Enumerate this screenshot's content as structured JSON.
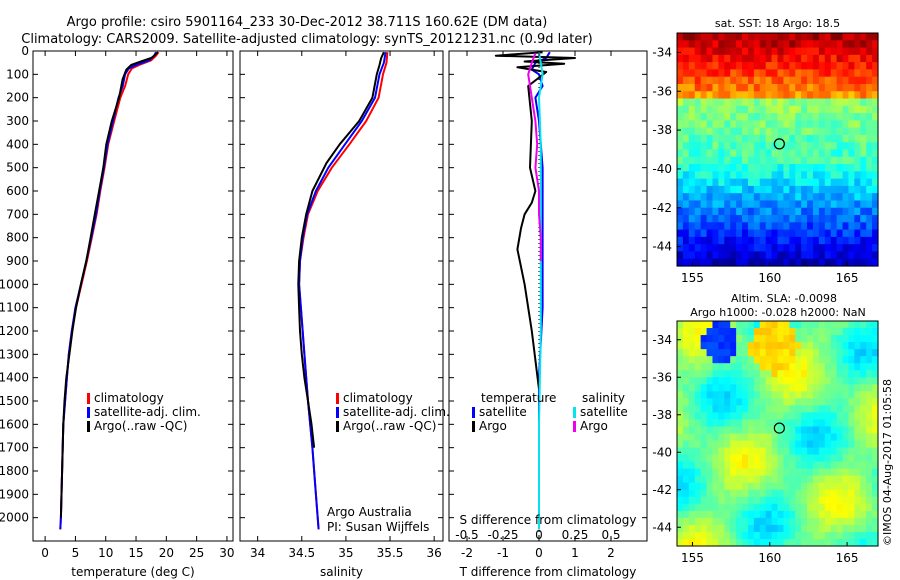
{
  "header": {
    "line1": "Argo profile: csiro 5901164_233 30-Dec-2012 38.711S 160.62E (DM data)",
    "line2": "Climatology: CARS2009. Satellite-adjusted climatology: synTS_20121231.nc (0.9d later)"
  },
  "colors": {
    "climatology": "#ff0000",
    "satellite": "#0000ff",
    "argo": "#000000",
    "salinity_satellite": "#00e5ee",
    "salinity_argo": "#ee00ee"
  },
  "chart_data": [
    {
      "type": "line",
      "xlabel": "temperature (deg C)",
      "ylabel": "",
      "xlim": [
        -2,
        31
      ],
      "ylim": [
        2100,
        0
      ],
      "xticks": [
        0,
        5,
        10,
        15,
        20,
        25,
        30
      ],
      "yticks": [
        0,
        100,
        200,
        300,
        400,
        500,
        600,
        700,
        800,
        900,
        1000,
        1100,
        1200,
        1300,
        1400,
        1500,
        1600,
        1700,
        1800,
        1900,
        2000
      ],
      "legend": [
        "climatology",
        "satellite-adj. clim.",
        "Argo(..raw -QC)"
      ],
      "legend_position": "lower-middle",
      "series": [
        {
          "name": "climatology",
          "color": "climatology",
          "x": [
            18.7,
            18.3,
            17.5,
            15.5,
            14.3,
            13.7,
            13.2,
            12.4,
            11.4,
            10.4,
            9.8,
            9.1,
            8.5,
            7.7,
            6.9,
            6.0,
            5.1,
            4.4,
            3.9,
            3.6,
            3.3,
            3.0,
            2.8,
            2.6,
            2.5
          ],
          "y": [
            5,
            20,
            40,
            60,
            75,
            100,
            150,
            200,
            300,
            400,
            500,
            600,
            700,
            800,
            900,
            1000,
            1100,
            1200,
            1300,
            1400,
            1500,
            1600,
            1800,
            2000,
            2050
          ]
        },
        {
          "name": "satellite-adj. clim.",
          "color": "satellite",
          "x": [
            18.3,
            18.0,
            17.2,
            15.0,
            13.8,
            13.2,
            12.8,
            12.1,
            11.2,
            10.3,
            9.7,
            9.0,
            8.4,
            7.6,
            6.8,
            5.9,
            5.0,
            4.4,
            3.9,
            3.6,
            3.3,
            3.0,
            2.8,
            2.6,
            2.5
          ],
          "y": [
            5,
            20,
            40,
            60,
            75,
            100,
            150,
            200,
            300,
            400,
            500,
            600,
            700,
            800,
            900,
            1000,
            1100,
            1200,
            1300,
            1400,
            1500,
            1600,
            1800,
            2000,
            2050
          ]
        },
        {
          "name": "Argo(..raw -QC)",
          "color": "argo",
          "x": [
            18.6,
            18.4,
            18.0,
            17.5,
            15.8,
            14.2,
            13.4,
            12.8,
            12.2,
            11.0,
            10.1,
            9.6,
            8.9,
            8.2,
            7.5,
            6.8,
            5.9,
            5.1,
            4.5,
            4.0,
            3.5,
            3.2,
            3.0,
            2.8,
            2.6
          ],
          "y": [
            5,
            10,
            20,
            30,
            45,
            60,
            80,
            120,
            200,
            300,
            400,
            500,
            600,
            700,
            800,
            900,
            1000,
            1100,
            1200,
            1300,
            1400,
            1500,
            1600,
            1800,
            2000
          ]
        }
      ]
    },
    {
      "type": "line",
      "xlabel": "salinity",
      "ylabel": "",
      "xlim": [
        33.8,
        36.1
      ],
      "ylim": [
        2100,
        0
      ],
      "xticks": [
        34,
        34.5,
        35,
        35.5,
        36
      ],
      "xtick_labels": [
        "34",
        "34.5",
        "35",
        "35.5",
        "36"
      ],
      "legend": [
        "climatology",
        "satellite-adj. clim.",
        "Argo(..raw -QC)"
      ],
      "legend_position": "lower-middle",
      "annotation": [
        "Argo Australia",
        "PI: Susan Wijffels"
      ],
      "series": [
        {
          "name": "climatology",
          "color": "climatology",
          "x": [
            35.47,
            35.46,
            35.42,
            35.37,
            35.23,
            35.04,
            34.84,
            34.68,
            34.57,
            34.52,
            34.48,
            34.47,
            34.49,
            34.53,
            34.57,
            34.62,
            34.66,
            34.69
          ],
          "y": [
            5,
            50,
            100,
            200,
            300,
            400,
            500,
            600,
            700,
            800,
            900,
            1000,
            1100,
            1300,
            1500,
            1700,
            1900,
            2050
          ]
        },
        {
          "name": "satellite-adj. clim.",
          "color": "satellite",
          "x": [
            35.45,
            35.43,
            35.38,
            35.33,
            35.18,
            34.99,
            34.8,
            34.66,
            34.56,
            34.51,
            34.48,
            34.47,
            34.49,
            34.53,
            34.57,
            34.62,
            34.66,
            34.69
          ],
          "y": [
            5,
            50,
            100,
            200,
            300,
            400,
            500,
            600,
            700,
            800,
            900,
            1000,
            1100,
            1300,
            1500,
            1700,
            1900,
            2050
          ]
        },
        {
          "name": "Argo(..raw -QC)",
          "color": "argo",
          "x": [
            35.43,
            35.4,
            35.38,
            35.35,
            35.3,
            35.15,
            34.93,
            34.78,
            34.62,
            34.55,
            34.5,
            34.47,
            34.46,
            34.47,
            34.48,
            34.5,
            34.53,
            34.57,
            34.61,
            34.64
          ],
          "y": [
            5,
            30,
            60,
            100,
            200,
            300,
            400,
            480,
            600,
            700,
            800,
            900,
            1000,
            1100,
            1200,
            1300,
            1400,
            1500,
            1600,
            1700
          ]
        }
      ]
    },
    {
      "type": "line",
      "xlabel": "T difference from climatology",
      "xlabel_top": "S difference from climatology",
      "xlim": [
        -2.5,
        3
      ],
      "ylim": [
        2100,
        0
      ],
      "xticks": [
        -2,
        -1,
        0,
        1,
        2
      ],
      "xticks_top": [
        -0.5,
        -0.25,
        0,
        0.25,
        0.5
      ],
      "xtick_labels_top": [
        "-0.5",
        "-0.25",
        "0",
        "0.25",
        "0.5"
      ],
      "legend_temperature_title": "temperature",
      "legend_salinity_title": "salinity",
      "legend_temperature": [
        "satellite",
        "Argo"
      ],
      "legend_salinity": [
        "satellite",
        "Argo"
      ],
      "series": [
        {
          "name": "satellite",
          "group": "temperature",
          "color": "satellite",
          "x": [
            0.3,
            0.2,
            -0.1,
            -0.2,
            0.0,
            0.1,
            -0.1,
            0.0,
            0.1,
            0.1,
            0.1,
            0.1,
            0.0,
            0.0
          ],
          "y": [
            5,
            30,
            50,
            80,
            100,
            150,
            200,
            300,
            500,
            700,
            900,
            1100,
            1400,
            2050
          ]
        },
        {
          "name": "Argo",
          "group": "temperature",
          "color": "argo",
          "x": [
            0.1,
            -1.2,
            1.0,
            -0.4,
            0.7,
            -0.6,
            0.2,
            -0.3,
            -0.2,
            -0.25,
            -0.1,
            -0.2,
            -0.4,
            -0.5,
            -0.6,
            -0.4,
            -0.2,
            0.0
          ],
          "y": [
            5,
            20,
            30,
            45,
            55,
            70,
            90,
            150,
            300,
            500,
            600,
            650,
            700,
            760,
            850,
            1000,
            1200,
            1450
          ]
        },
        {
          "name": "satellite",
          "group": "salinity",
          "color": "salinity_satellite",
          "x": [
            0.0,
            0.1,
            0.0,
            0.05,
            0.05,
            0.05,
            0.05,
            0.0,
            0.0
          ],
          "y": [
            5,
            100,
            200,
            400,
            600,
            800,
            1200,
            1600,
            2050
          ]
        },
        {
          "name": "Argo",
          "group": "salinity",
          "color": "salinity_argo",
          "x": [
            -0.1,
            -0.2,
            -0.3,
            -0.2,
            -0.1,
            -0.05,
            -0.1,
            0.0,
            0.0,
            0.05,
            0.05
          ],
          "y": [
            10,
            50,
            100,
            200,
            300,
            400,
            500,
            600,
            700,
            800,
            900
          ]
        }
      ]
    },
    {
      "type": "heatmap",
      "title": "sat. SST: 18 Argo: 18.5",
      "xlim": [
        154,
        167
      ],
      "ylim": [
        -45,
        -33
      ],
      "xticks": [
        155,
        160,
        165
      ],
      "yticks": [
        -34,
        -36,
        -38,
        -40,
        -42,
        -44
      ],
      "marker": {
        "lon": 160.62,
        "lat": -38.711
      }
    },
    {
      "type": "heatmap",
      "title": "Altim. SLA: -0.0098",
      "subtitle": "Argo h1000: -0.028 h2000: NaN",
      "xlim": [
        154,
        167
      ],
      "ylim": [
        -45,
        -33
      ],
      "xticks": [
        155,
        160,
        165
      ],
      "yticks": [
        -34,
        -36,
        -38,
        -40,
        -42,
        -44
      ],
      "marker": {
        "lon": 160.62,
        "lat": -38.711
      }
    }
  ],
  "footer": {
    "credit": "©IMOS 04-Aug-2017 01:05:58"
  }
}
